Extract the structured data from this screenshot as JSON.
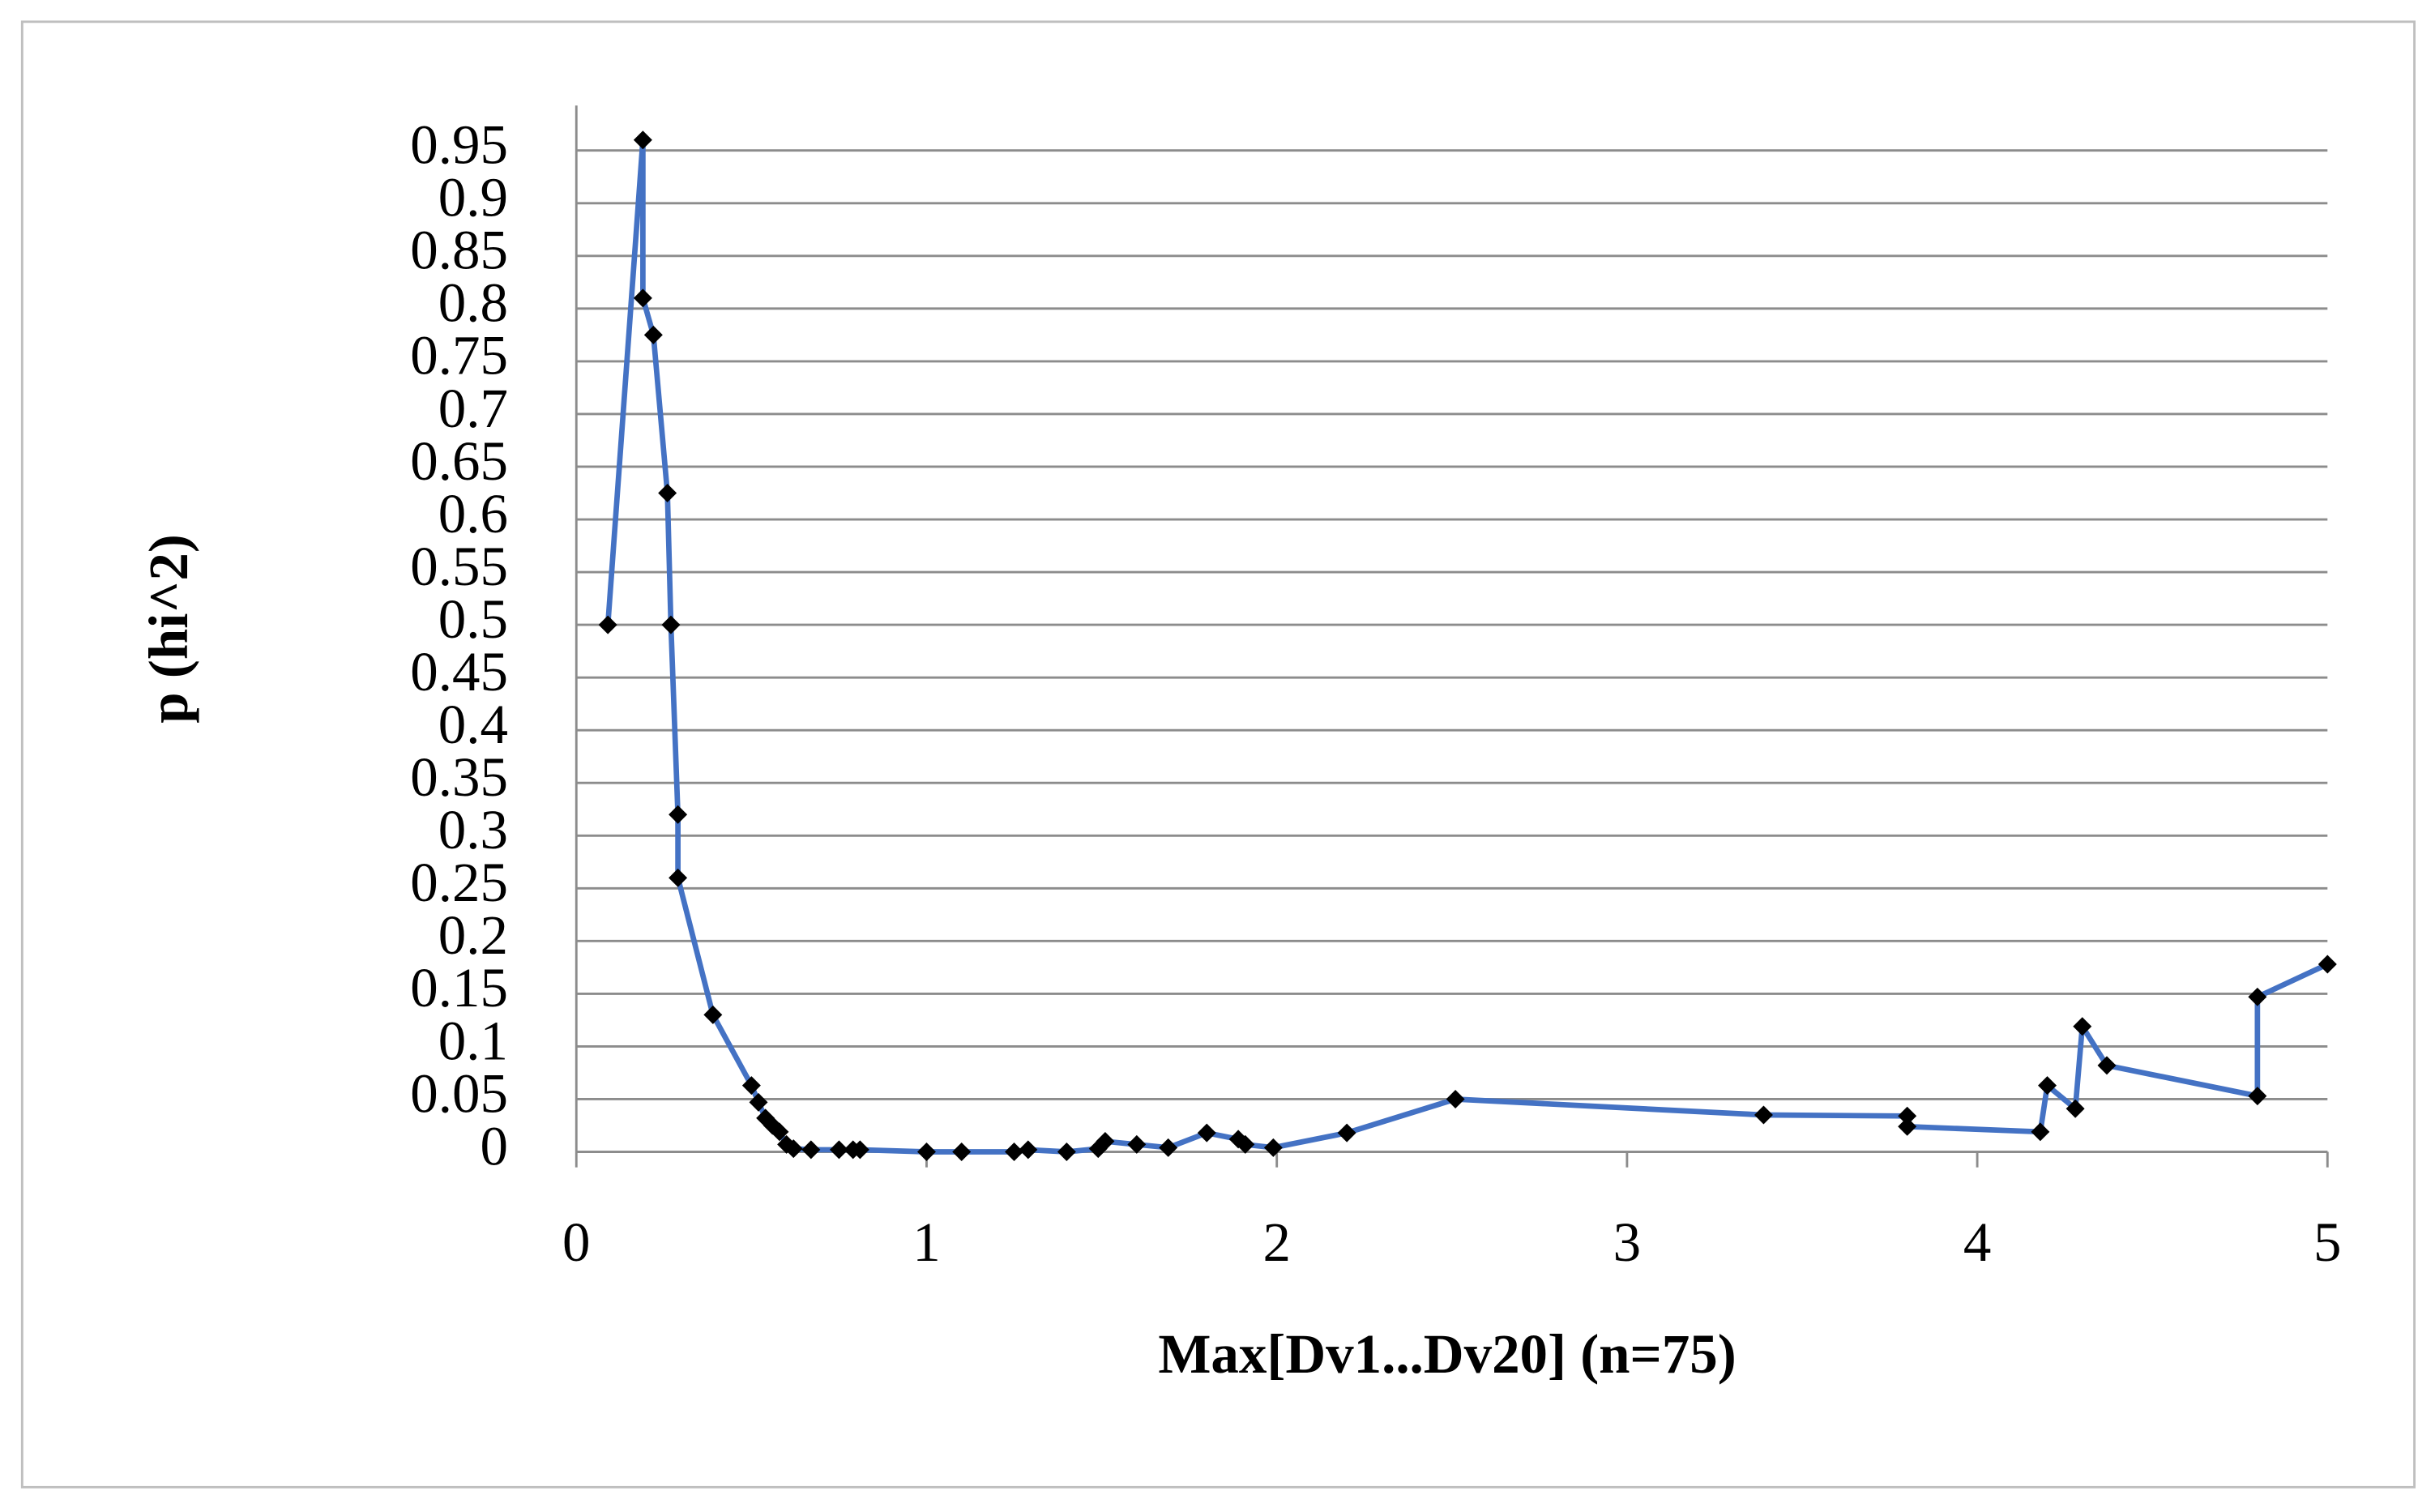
{
  "chart_data": {
    "type": "line",
    "x_label": "Max[Dv1...Dv20] (n=75)",
    "y_label": "p (hi^2)",
    "x": [
      0.09,
      0.19,
      0.19,
      0.22,
      0.26,
      0.27,
      0.29,
      0.29,
      0.39,
      0.5,
      0.52,
      0.54,
      0.56,
      0.58,
      0.6,
      0.62,
      0.67,
      0.75,
      0.79,
      0.81,
      1.0,
      1.1,
      1.25,
      1.29,
      1.4,
      1.49,
      1.51,
      1.6,
      1.69,
      1.8,
      1.89,
      1.91,
      1.99,
      2.2,
      2.51,
      3.39,
      3.8,
      3.8,
      4.18,
      4.2,
      4.28,
      4.3,
      4.37,
      4.8,
      4.8,
      5.0
    ],
    "values": [
      0.5,
      0.96,
      0.81,
      0.775,
      0.625,
      0.5,
      0.32,
      0.26,
      0.13,
      0.063,
      0.047,
      0.032,
      0.025,
      0.019,
      0.007,
      0.003,
      0.002,
      0.002,
      0.002,
      0.002,
      0,
      0,
      0,
      0.002,
      0,
      0.003,
      0.01,
      0.007,
      0.004,
      0.018,
      0.012,
      0.007,
      0.004,
      0.018,
      0.05,
      0.035,
      0.034,
      0.024,
      0.019,
      0.063,
      0.041,
      0.119,
      0.082,
      0.053,
      0.147,
      0.178
    ],
    "color": "#4472c4",
    "marker_color": "#000000",
    "xlim": [
      0,
      5
    ],
    "xticks": [
      0,
      1,
      2,
      3,
      4,
      5
    ],
    "ylim": [
      0,
      1
    ],
    "yticks": [
      0,
      0.05,
      0.1,
      0.15,
      0.2,
      0.25,
      0.3,
      0.35,
      0.4,
      0.45,
      0.5,
      0.55,
      0.6,
      0.65,
      0.7,
      0.75,
      0.8,
      0.85,
      0.9,
      0.95
    ],
    "grid": true
  }
}
